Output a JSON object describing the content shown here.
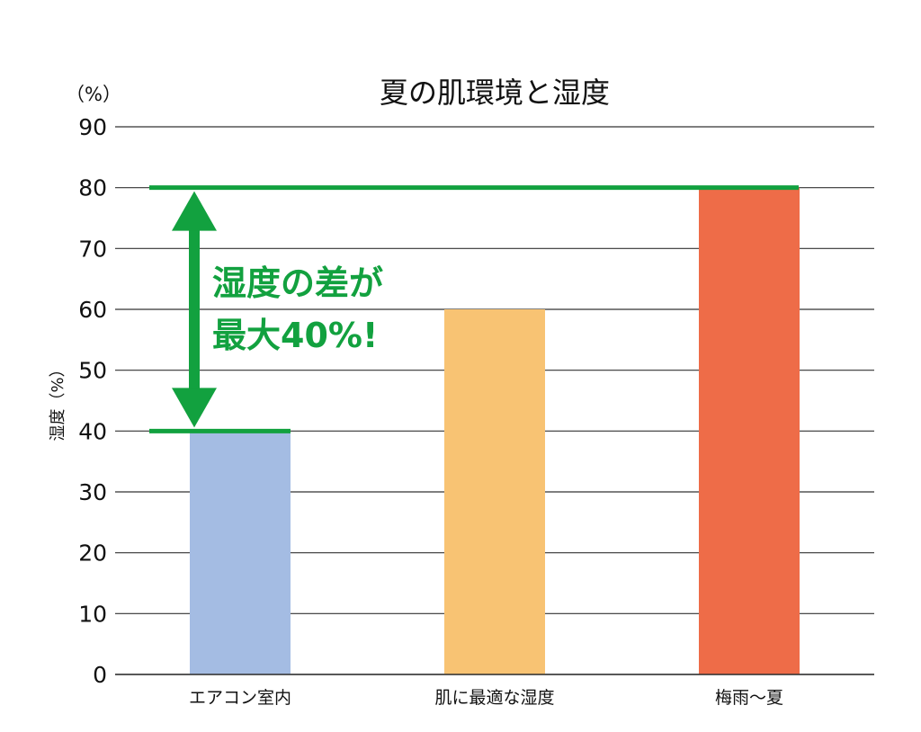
{
  "chart_data": {
    "type": "bar",
    "title": "夏の肌環境と湿度",
    "unit_label": "（%）",
    "ylabel": "湿度（%）",
    "xlabel": "",
    "categories": [
      "エアコン室内",
      "肌に最適な湿度",
      "梅雨～夏"
    ],
    "values": [
      40,
      60,
      80
    ],
    "bar_colors": [
      "#a4bce3",
      "#f8c373",
      "#ee6c48"
    ],
    "ylim": [
      0,
      90
    ],
    "yticks": [
      0,
      10,
      20,
      30,
      40,
      50,
      60,
      70,
      80,
      90
    ],
    "grid": true,
    "annotation": {
      "lines": [
        "湿度の差が",
        "最大40%!"
      ],
      "from_value": 40,
      "to_value": 80,
      "color": "#12a13f"
    }
  }
}
